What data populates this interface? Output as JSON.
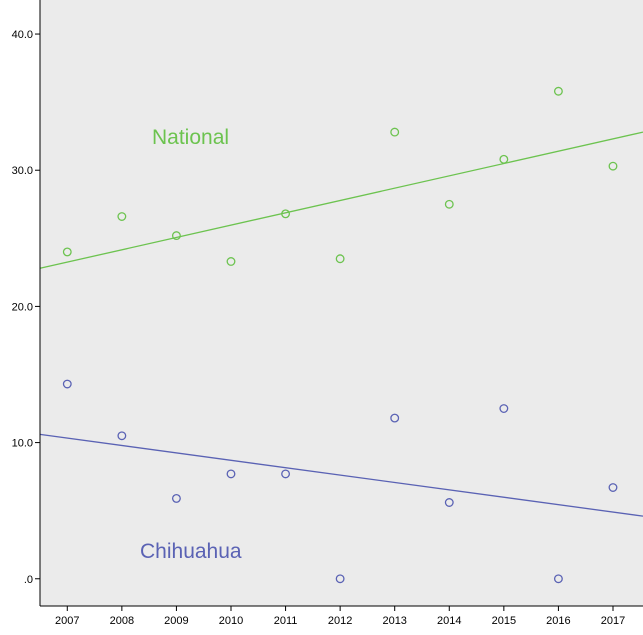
{
  "colors": {
    "plot_background": "#ebebeb",
    "axis": "#000000",
    "national": "#6cc34f",
    "chihuahua": "#5a62b4"
  },
  "chart_data": {
    "type": "scatter",
    "title": "",
    "xlabel": "",
    "ylabel": "",
    "x": [
      2007,
      2008,
      2009,
      2010,
      2011,
      2012,
      2013,
      2014,
      2015,
      2016,
      2017
    ],
    "xlim": [
      2006.5,
      2017.55
    ],
    "ylim": [
      -2,
      42.5
    ],
    "y_ticks": [
      0,
      10,
      20,
      30,
      40
    ],
    "y_tick_labels": [
      ".0",
      "10.0",
      "20.0",
      "30.0",
      "40.0"
    ],
    "x_tick_labels": [
      "2007",
      "2008",
      "2009",
      "2010",
      "2011",
      "2012",
      "2013",
      "2014",
      "2015",
      "2016",
      "2017"
    ],
    "grid": false,
    "series": [
      {
        "name": "National",
        "color_key": "national",
        "values": [
          24.0,
          26.6,
          25.2,
          23.3,
          26.8,
          23.5,
          32.8,
          27.5,
          30.8,
          35.8,
          30.3
        ],
        "fit_line": {
          "start": [
            2006.5,
            22.8
          ],
          "end": [
            2017.55,
            32.8
          ]
        }
      },
      {
        "name": "Chihuahua",
        "color_key": "chihuahua",
        "values": [
          14.3,
          10.5,
          5.9,
          7.7,
          7.7,
          0.0,
          11.8,
          5.6,
          12.5,
          0.0,
          6.7
        ],
        "fit_line": {
          "start": [
            2006.5,
            10.6
          ],
          "end": [
            2017.55,
            4.6
          ]
        }
      }
    ]
  }
}
